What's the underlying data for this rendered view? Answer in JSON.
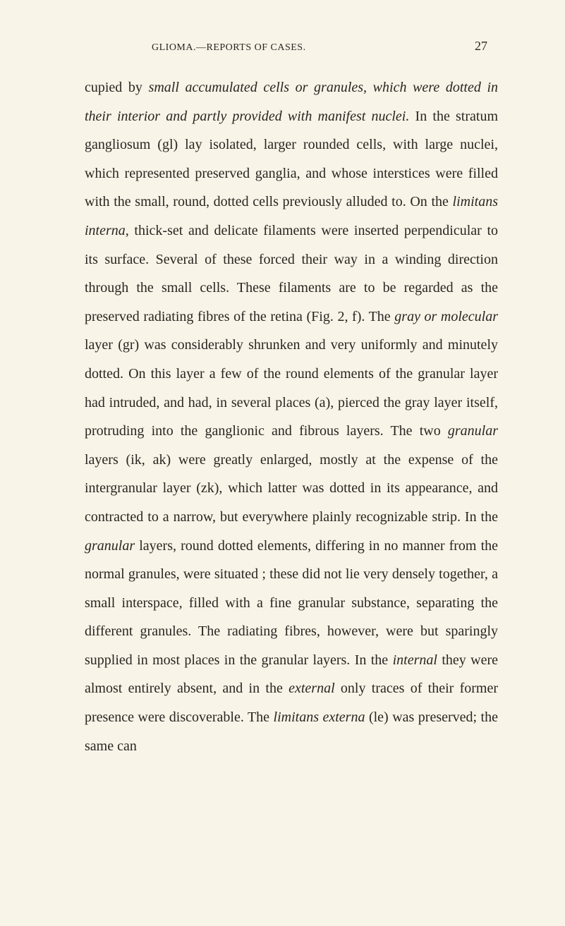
{
  "header": {
    "running_title": "GLIOMA.—REPORTS OF CASES.",
    "page_number": "27"
  },
  "body": {
    "paragraphs": [
      {
        "segments": [
          {
            "text": "cupied by ",
            "italic": false
          },
          {
            "text": "small accumulated cells or granules, which were dotted in their interior and partly provided with manifest nuclei.",
            "italic": true
          },
          {
            "text": " In the stratum gangliosum (gl) lay isolated, larger rounded cells, with large nuclei, which represented preserved ganglia, and whose interstices were filled with the small, round, dotted cells previously alluded to. On the ",
            "italic": false
          },
          {
            "text": "limitans interna",
            "italic": true
          },
          {
            "text": ", thick-set and delicate filaments were inserted perpendicular to its surface. Several of these forced their way in a winding direction through the small cells. These filaments are to be regarded as the preserved radiating fibres of the retina (Fig. 2, f). The ",
            "italic": false
          },
          {
            "text": "gray or molecular",
            "italic": true
          },
          {
            "text": " layer (gr) was considerably shrunken and very uniformly and minutely dotted. On this layer a few of the round elements of the granular layer had intruded, and had, in several places (a), pierced the gray layer itself, protruding into the ganglionic and fibrous layers. The two ",
            "italic": false
          },
          {
            "text": "granular",
            "italic": true
          },
          {
            "text": " layers (ik, ak) were greatly enlarged, mostly at the expense of the intergranular layer (zk), which latter was dotted in its appearance, and contracted to a narrow, but everywhere plainly recognizable strip. In the ",
            "italic": false
          },
          {
            "text": "granular",
            "italic": true
          },
          {
            "text": " layers, round dotted elements, differing in no manner from the normal granules, were situated ; these did not lie very densely together, a small interspace, filled with a fine granular substance, separating the different granules. The radiating fibres, however, were but sparingly supplied in most places in the granular layers. In the ",
            "italic": false
          },
          {
            "text": "internal",
            "italic": true
          },
          {
            "text": " they were almost entirely absent, and in the ",
            "italic": false
          },
          {
            "text": "external",
            "italic": true
          },
          {
            "text": " only traces of their former presence were discoverable. The ",
            "italic": false
          },
          {
            "text": "limitans externa",
            "italic": true
          },
          {
            "text": " (le) was preserved; the same can",
            "italic": false
          }
        ]
      }
    ]
  }
}
